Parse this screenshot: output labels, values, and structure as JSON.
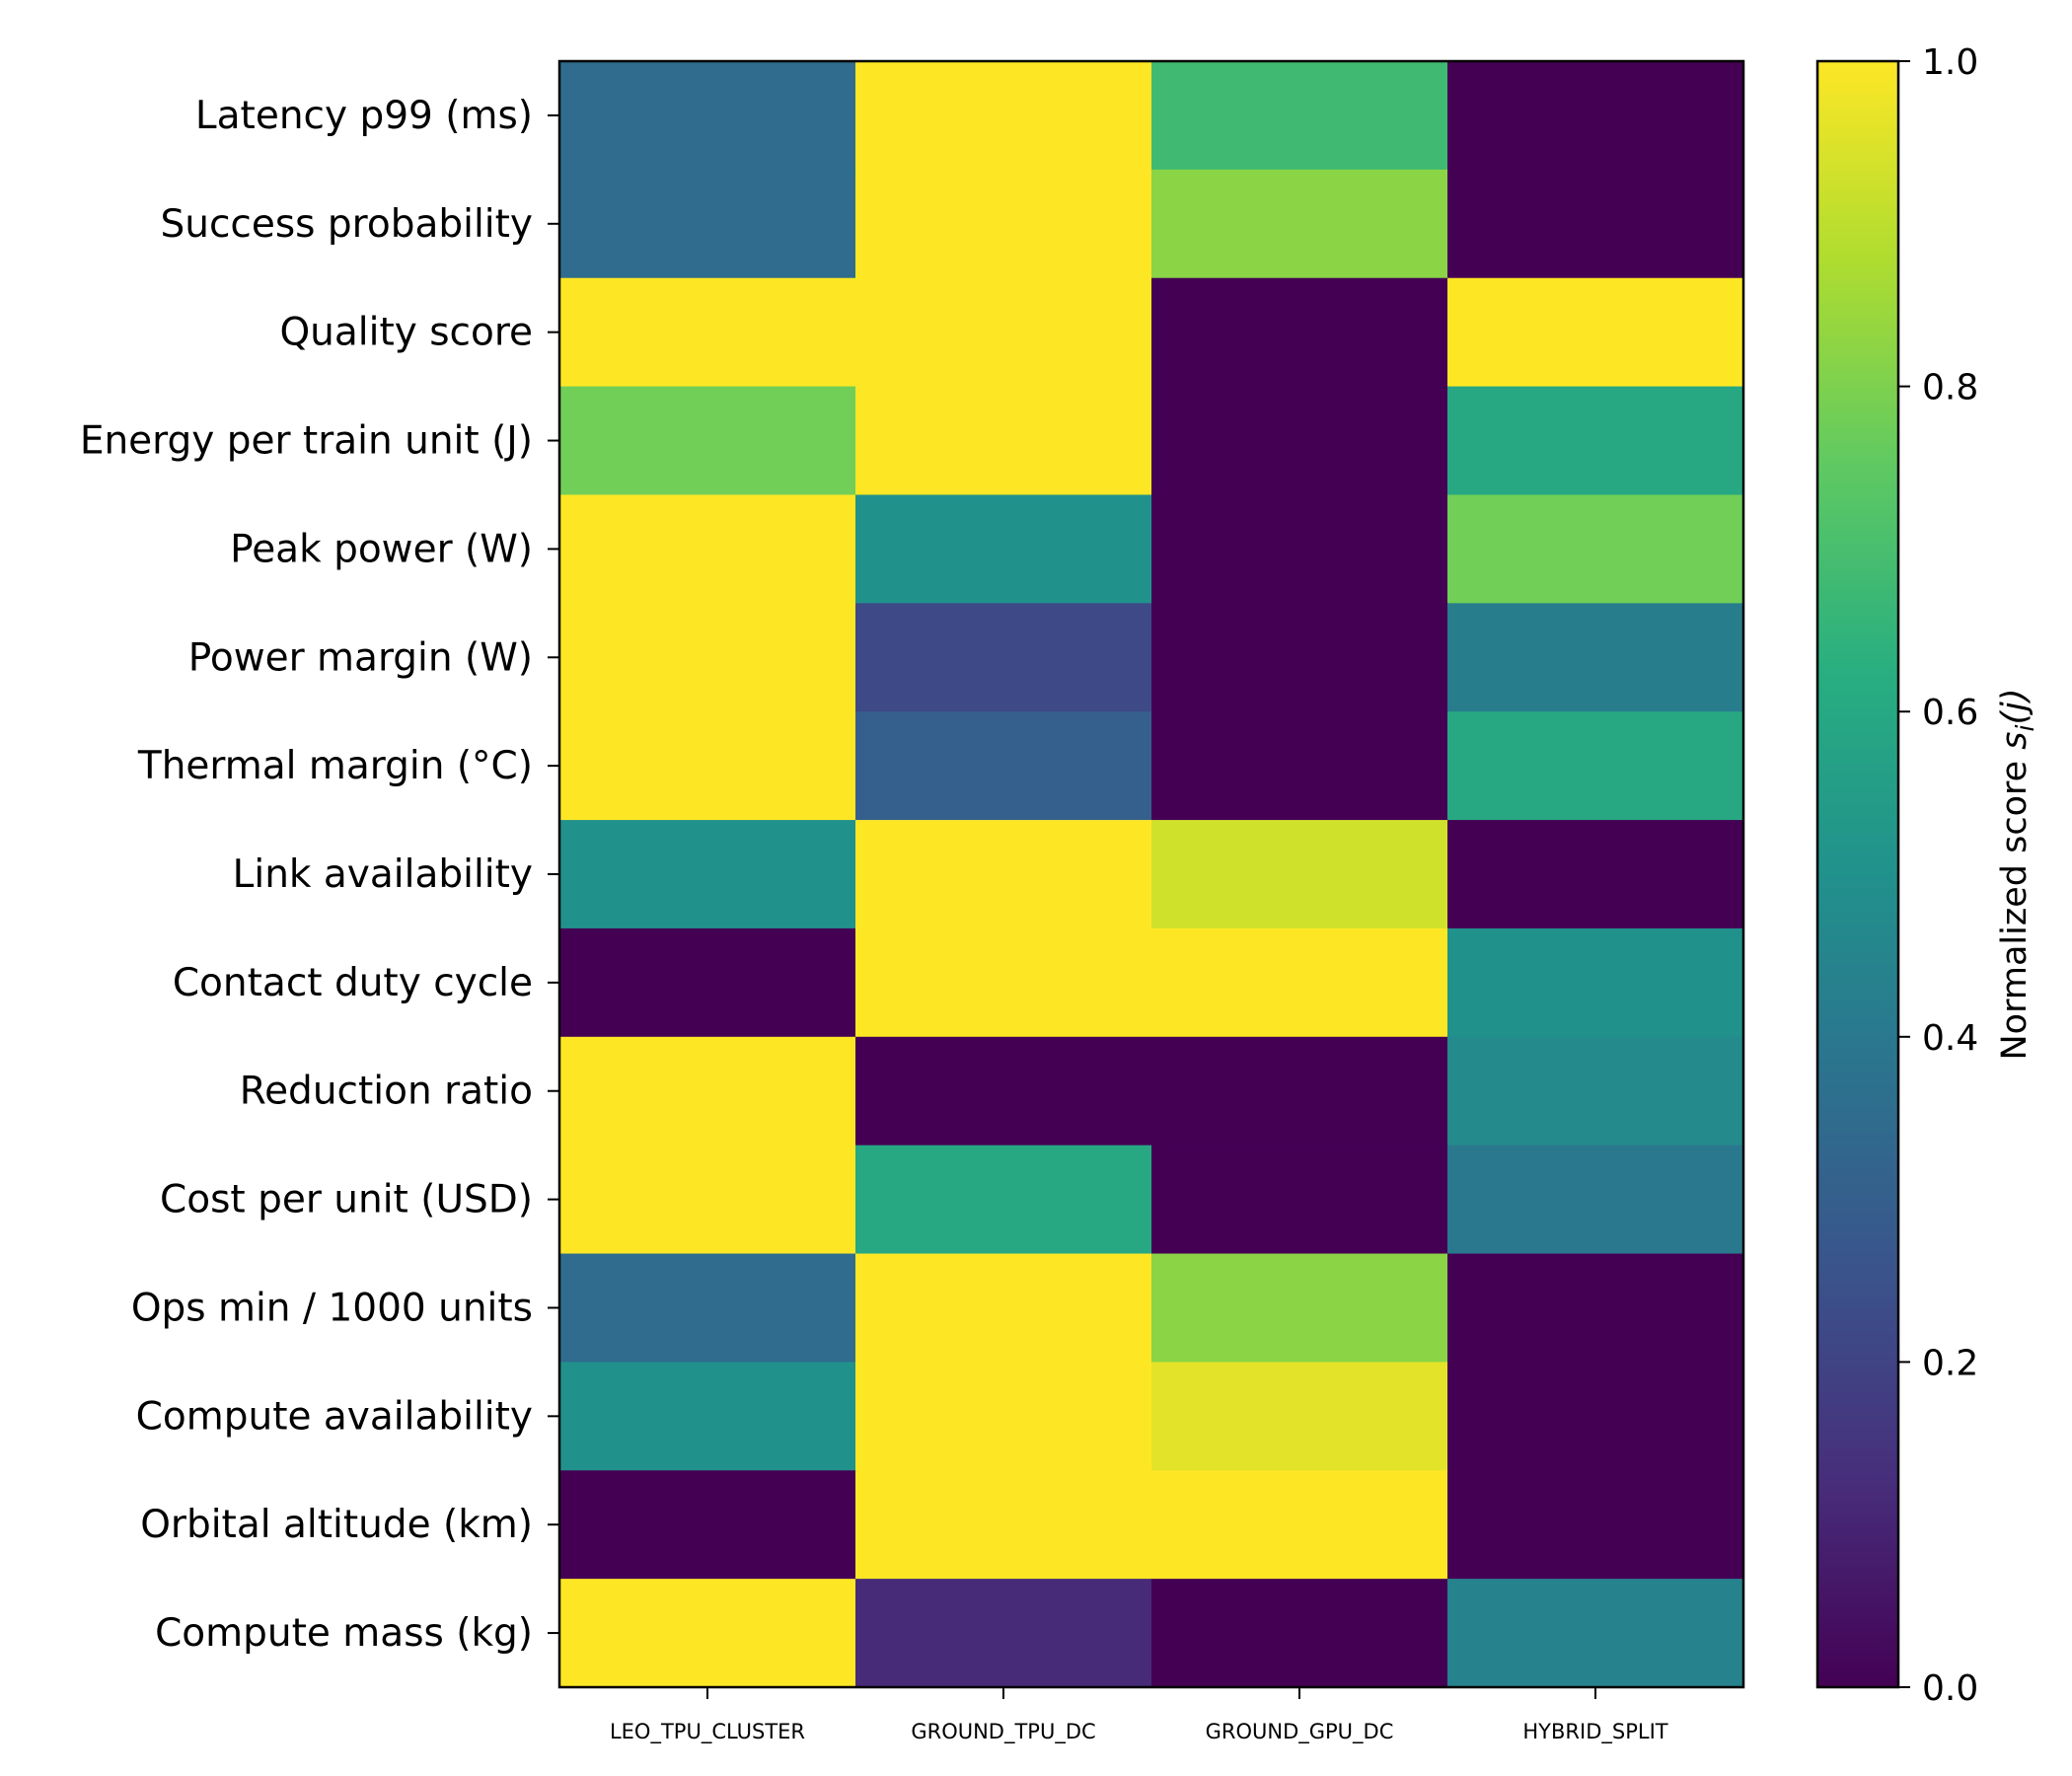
{
  "chart_data": {
    "type": "heatmap",
    "title": "",
    "columns": [
      "LEO_TPU_CLUSTER",
      "GROUND_TPU_DC",
      "GROUND_GPU_DC",
      "HYBRID_SPLIT"
    ],
    "rows": [
      "Latency p99 (ms)",
      "Success probability",
      "Quality score",
      "Energy per train unit (J)",
      "Peak power (W)",
      "Power margin (W)",
      "Thermal margin (°C)",
      "Link availability",
      "Contact duty cycle",
      "Reduction ratio",
      "Cost per unit (USD)",
      "Ops min / 1000 units",
      "Compute availability",
      "Orbital altitude (km)",
      "Compute mass (kg)"
    ],
    "values": [
      [
        0.35,
        1.0,
        0.68,
        0.0
      ],
      [
        0.35,
        1.0,
        0.82,
        0.0
      ],
      [
        1.0,
        1.0,
        0.0,
        1.0
      ],
      [
        0.78,
        1.0,
        0.0,
        0.6
      ],
      [
        1.0,
        0.5,
        0.0,
        0.78
      ],
      [
        1.0,
        0.22,
        0.0,
        0.42
      ],
      [
        1.0,
        0.3,
        0.0,
        0.6
      ],
      [
        0.5,
        1.0,
        0.93,
        0.0
      ],
      [
        0.0,
        1.0,
        1.0,
        0.5
      ],
      [
        1.0,
        0.0,
        0.0,
        0.47
      ],
      [
        1.0,
        0.6,
        0.0,
        0.4
      ],
      [
        0.35,
        1.0,
        0.82,
        0.0
      ],
      [
        0.5,
        1.0,
        0.96,
        0.0
      ],
      [
        0.0,
        1.0,
        1.0,
        0.0
      ],
      [
        1.0,
        0.12,
        0.0,
        0.44
      ]
    ],
    "vmin": 0.0,
    "vmax": 1.0,
    "colormap": "viridis",
    "colorbar": {
      "label": "Normalized score ",
      "label_math": "s",
      "label_sub": "i",
      "label_tail": "(j)",
      "ticks": [
        "0.0",
        "0.2",
        "0.4",
        "0.6",
        "0.8",
        "1.0"
      ],
      "tick_values": [
        0.0,
        0.2,
        0.4,
        0.6,
        0.8,
        1.0
      ]
    }
  }
}
